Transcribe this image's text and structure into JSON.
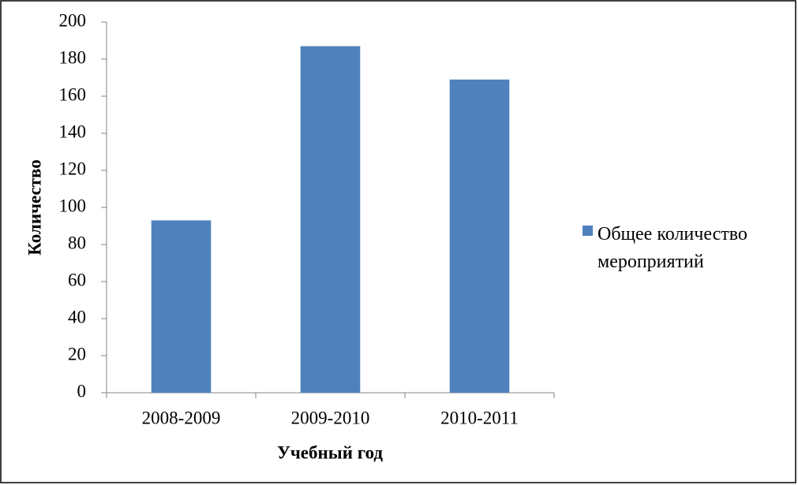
{
  "chart_data": {
    "type": "bar",
    "x_label": "Учебный год",
    "y_label": "Количество",
    "categories": [
      "2008-2009",
      "2009-2010",
      "2010-2011"
    ],
    "series": [
      {
        "name": "Общее количество мероприятий",
        "color": "#4f81bd",
        "values": [
          93,
          187,
          169
        ]
      }
    ],
    "ylim": [
      0,
      200
    ],
    "yticks": [
      0,
      20,
      40,
      60,
      80,
      100,
      120,
      140,
      160,
      180,
      200
    ],
    "grid": false,
    "legend": "right"
  }
}
